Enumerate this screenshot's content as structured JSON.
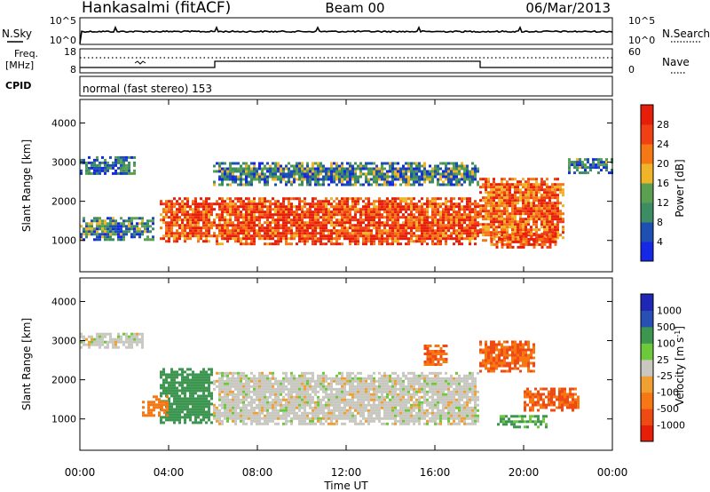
{
  "header": {
    "site": "Hankasalmi (fitACF)",
    "beam": "Beam 00",
    "date": "06/Mar/2013"
  },
  "noise_panel": {
    "left_label": "N.Sky",
    "right_label": "N.Search",
    "tick_top": "10^5",
    "tick_bottom": "10^0",
    "right_tick_top": "10^5",
    "right_tick_bottom": "10^0"
  },
  "freq_panel": {
    "left_label_1": "Freq.",
    "left_label_2": "[MHz]",
    "left_tick_top": "18",
    "left_tick_bottom": "8",
    "right_label": "Nave",
    "right_tick_top": "60",
    "right_tick_bottom": "0"
  },
  "cpid_panel": {
    "label": "CPID",
    "text": "normal (fast stereo) 153"
  },
  "colors": {
    "power": [
      "#1428e6",
      "#1e50b4",
      "#3c8c64",
      "#5aa050",
      "#f0b428",
      "#f57814",
      "#f04014",
      "#e61e0a"
    ],
    "velocity": [
      "#e61e0a",
      "#f04a14",
      "#f57814",
      "#f0a032",
      "#c8c8c0",
      "#6ec83c",
      "#3c9650",
      "#2850b4",
      "#1e28b4"
    ]
  },
  "chart_data": [
    {
      "type": "heatmap",
      "ylabel": "Slant Range [km]",
      "ylim": [
        200,
        4600
      ],
      "yticks": [
        "1000",
        "2000",
        "3000",
        "4000"
      ],
      "colorbar": {
        "label": "Power [dB]",
        "ticks": [
          "4",
          "8",
          "12",
          "16",
          "20",
          "24",
          "28"
        ],
        "range": [
          0,
          32
        ]
      },
      "blobs": [
        {
          "t": [
            0.0,
            2.5
          ],
          "r": [
            2700,
            3150
          ],
          "val": 8
        },
        {
          "t": [
            0.0,
            3.3
          ],
          "r": [
            1050,
            1600
          ],
          "val": 10
        },
        {
          "t": [
            3.6,
            6.0
          ],
          "r": [
            1000,
            2100
          ],
          "val": 26
        },
        {
          "t": [
            6.0,
            18.0
          ],
          "r": [
            900,
            2100
          ],
          "val": 26
        },
        {
          "t": [
            6.0,
            18.0
          ],
          "r": [
            2400,
            3000
          ],
          "val": 10
        },
        {
          "t": [
            18.0,
            21.8
          ],
          "r": [
            1000,
            2600
          ],
          "val": 24
        },
        {
          "t": [
            18.5,
            21.5
          ],
          "r": [
            800,
            1200
          ],
          "val": 26
        },
        {
          "t": [
            22.0,
            24.0
          ],
          "r": [
            2700,
            3100
          ],
          "val": 9
        }
      ]
    },
    {
      "type": "heatmap",
      "ylabel": "Slant Range [km]",
      "ylim": [
        200,
        4600
      ],
      "yticks": [
        "1000",
        "2000",
        "3000",
        "4000"
      ],
      "colorbar": {
        "label": "Velocity [m s^-1]",
        "ticks": [
          "1000",
          "500",
          "100",
          "25",
          "-25",
          "-100",
          "-500",
          "-1000"
        ]
      },
      "blobs": [
        {
          "t": [
            0.0,
            2.8
          ],
          "r": [
            2800,
            3200
          ],
          "val": 0
        },
        {
          "t": [
            3.6,
            6.0
          ],
          "r": [
            900,
            2300
          ],
          "val": 250
        },
        {
          "t": [
            2.8,
            4.0
          ],
          "r": [
            1100,
            1600
          ],
          "val": -300
        },
        {
          "t": [
            6.0,
            18.0
          ],
          "r": [
            900,
            2200
          ],
          "val": 0
        },
        {
          "t": [
            15.5,
            16.5
          ],
          "r": [
            2400,
            2900
          ],
          "val": -500
        },
        {
          "t": [
            18.0,
            20.5
          ],
          "r": [
            2200,
            3000
          ],
          "val": -500
        },
        {
          "t": [
            20.0,
            22.5
          ],
          "r": [
            1200,
            1800
          ],
          "val": -500
        },
        {
          "t": [
            18.8,
            21.0
          ],
          "r": [
            800,
            1100
          ],
          "val": 120
        }
      ]
    }
  ],
  "xaxis": {
    "label": "Time UT",
    "ticks": [
      "00:00",
      "04:00",
      "08:00",
      "12:00",
      "16:00",
      "20:00",
      "00:00"
    ],
    "range": [
      0,
      24
    ]
  }
}
